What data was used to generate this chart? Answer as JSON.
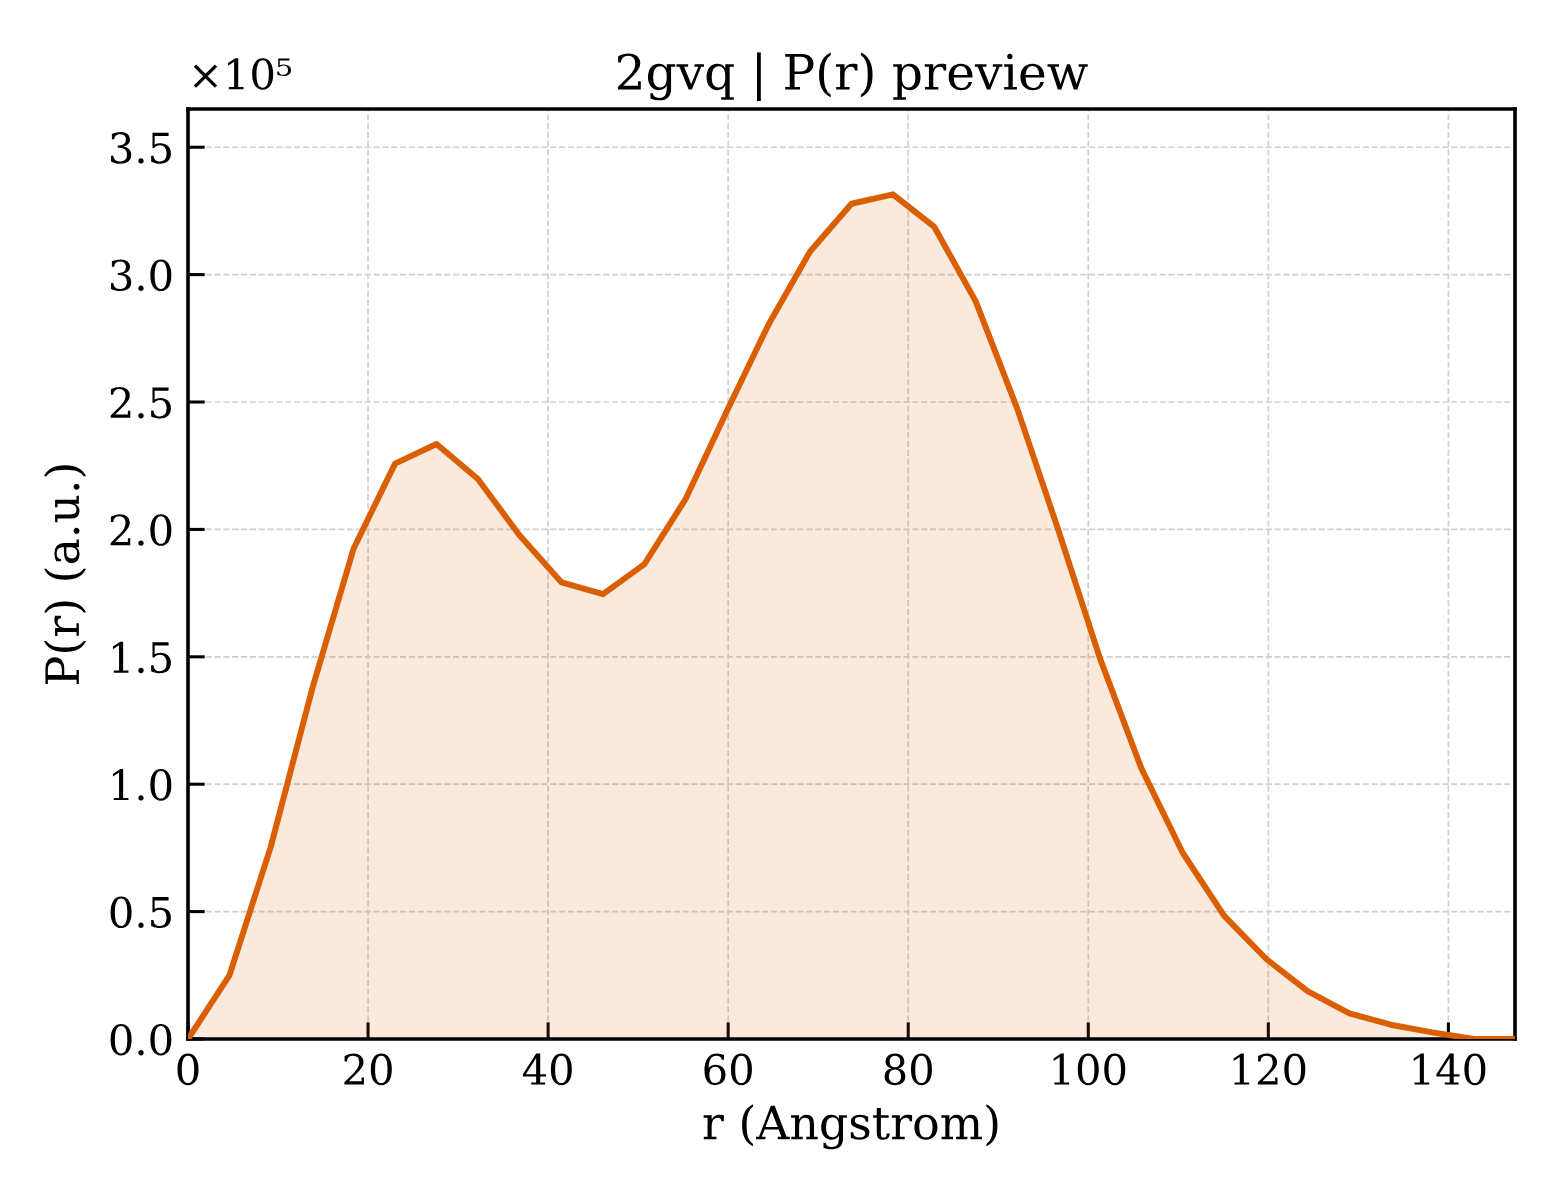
{
  "chart_data": {
    "type": "area",
    "title": "2gvq | P(r) preview",
    "xlabel": "r (Angstrom)",
    "ylabel": "P(r) (a.u.)",
    "annotations": [
      "×10⁵"
    ],
    "x": [
      0,
      4.6,
      9.2,
      13.8,
      18.4,
      23.0,
      27.6,
      32.2,
      36.8,
      41.5,
      46.1,
      50.7,
      55.3,
      59.9,
      64.5,
      69.1,
      73.7,
      78.3,
      82.9,
      87.5,
      92.1,
      96.7,
      101.3,
      105.9,
      110.5,
      115.1,
      119.8,
      124.4,
      129.0,
      133.6,
      138.2,
      142.8,
      147.4
    ],
    "series": [
      {
        "color": "#d95f02",
        "values": [
          0,
          0.25,
          0.755,
          1.375,
          1.925,
          2.258,
          2.335,
          2.198,
          1.978,
          1.792,
          1.746,
          1.864,
          2.121,
          2.468,
          2.805,
          3.091,
          3.278,
          3.315,
          3.187,
          2.895,
          2.475,
          1.995,
          1.494,
          1.062,
          0.73,
          0.483,
          0.313,
          0.187,
          0.101,
          0.056,
          0.026,
          0,
          0
        ]
      }
    ],
    "xlim": [
      0,
      147.4
    ],
    "ylim": [
      0,
      3.65
    ],
    "xticks": [
      0,
      20,
      40,
      60,
      80,
      100,
      120,
      140
    ],
    "yticks": [
      {
        "value": 0,
        "label": "0.0"
      },
      0.5,
      {
        "value": 1,
        "label": "1.0"
      },
      1.5,
      {
        "value": 2,
        "label": "2.0"
      },
      2.5,
      {
        "value": 3,
        "label": "3.0"
      },
      3.5
    ],
    "grid": true,
    "line_style": "solid"
  }
}
